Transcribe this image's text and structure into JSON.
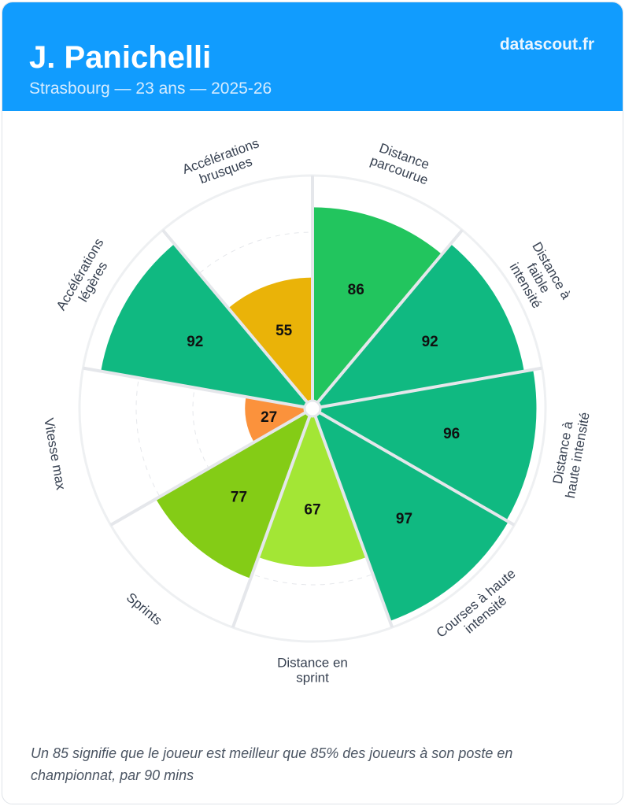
{
  "header": {
    "name": "J. Panichelli",
    "subtitle": "Strasbourg — 23 ans — 2025-26",
    "brand": "datascout.fr",
    "color": "#119cfe"
  },
  "chart_data": {
    "type": "pie",
    "subtype": "pizza/polar-area percentile chart",
    "range": [
      0,
      100
    ],
    "categories": [
      {
        "label": [
          "Distance",
          "parcourue"
        ],
        "value": 86,
        "color": "#22c55e"
      },
      {
        "label": [
          "Distance à",
          "faible",
          "intensité"
        ],
        "value": 92,
        "color": "#10b981"
      },
      {
        "label": [
          "Distance à",
          "haute intensité"
        ],
        "value": 96,
        "color": "#10b981"
      },
      {
        "label": [
          "Courses à haute",
          "intensité"
        ],
        "value": 97,
        "color": "#10b981"
      },
      {
        "label": [
          "Distance en",
          "sprint"
        ],
        "value": 67,
        "color": "#a3e635"
      },
      {
        "label": [
          "Sprints"
        ],
        "value": 77,
        "color": "#84cc16"
      },
      {
        "label": [
          "Vitesse max"
        ],
        "value": 27,
        "color": "#fb923c"
      },
      {
        "label": [
          "Accélérations",
          "légères"
        ],
        "value": 92,
        "color": "#10b981"
      },
      {
        "label": [
          "Accélérations",
          "brusques"
        ],
        "value": 55,
        "color": "#eab308"
      }
    ]
  },
  "footer": {
    "note": "Un 85 signifie que le joueur est meilleur que 85% des joueurs à son poste en championnat, par 90 mins"
  }
}
